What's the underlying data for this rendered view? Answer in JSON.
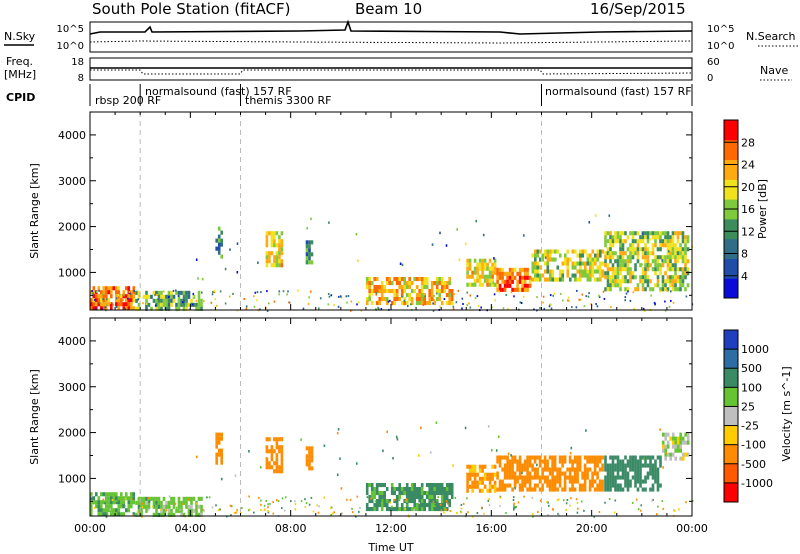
{
  "header": {
    "station": "South Pole Station (fitACF)",
    "beam": "Beam 10",
    "date": "16/Sep/2015"
  },
  "noise_panel": {
    "left_label": "N.Sky",
    "right_label": "N.Search",
    "left_ticks": [
      "10^5",
      "10^0"
    ],
    "right_ticks": [
      "10^5",
      "10^0"
    ]
  },
  "freq_panel": {
    "left_label_line1": "Freq.",
    "left_label_line2": "[MHz]",
    "right_label": "Nave",
    "left_ticks": [
      "18",
      "8"
    ],
    "right_ticks": [
      "60",
      "0"
    ]
  },
  "cpid": {
    "label": "CPID",
    "segments": [
      {
        "start_hour": 0.0,
        "text": "rbsp 200 RF"
      },
      {
        "start_hour": 2.0,
        "text": "normalsound (fast) 157 RF"
      },
      {
        "start_hour": 6.0,
        "text": "themis 3300 RF"
      },
      {
        "start_hour": 18.0,
        "text": "normalsound (fast) 157 RF"
      }
    ]
  },
  "x_axis": {
    "label": "Time UT",
    "range_hours": [
      0,
      24
    ],
    "ticks": [
      {
        "hour": 0,
        "label": "00:00"
      },
      {
        "hour": 4,
        "label": "04:00"
      },
      {
        "hour": 8,
        "label": "08:00"
      },
      {
        "hour": 12,
        "label": "12:00"
      },
      {
        "hour": 16,
        "label": "16:00"
      },
      {
        "hour": 20,
        "label": "20:00"
      },
      {
        "hour": 24,
        "label": "00:00"
      }
    ]
  },
  "chart_data": [
    {
      "type": "heatmap",
      "name": "power",
      "xlabel": "Time UT",
      "ylabel": "Slant Range [km]",
      "xlim": [
        0,
        24
      ],
      "ylim": [
        180,
        4500
      ],
      "y_ticks": [
        {
          "value": 1000,
          "label": "1000"
        },
        {
          "value": 2000,
          "label": "2000"
        },
        {
          "value": 3000,
          "label": "3000"
        },
        {
          "value": 4000,
          "label": "4000"
        }
      ],
      "colorbar": {
        "label": "Power [dB]",
        "range": [
          0,
          32
        ],
        "ticks": [
          {
            "value": 4,
            "label": "4"
          },
          {
            "value": 8,
            "label": "8"
          },
          {
            "value": 12,
            "label": "12"
          },
          {
            "value": 16,
            "label": "16"
          },
          {
            "value": 20,
            "label": "20"
          },
          {
            "value": 24,
            "label": "24"
          },
          {
            "value": 28,
            "label": "28"
          }
        ],
        "colors": [
          "#0b0bd9",
          "#1f4ea8",
          "#2f6e86",
          "#3c8c5c",
          "#7fc93c",
          "#f0e21c",
          "#ffaa11",
          "#ff6a00",
          "#ff0000"
        ]
      },
      "regions": [
        {
          "t0": 0.0,
          "t1": 1.8,
          "r0": 200,
          "r1": 700,
          "value": 26
        },
        {
          "t0": 1.8,
          "t1": 4.5,
          "r0": 200,
          "r1": 600,
          "value": 14
        },
        {
          "t0": 5.0,
          "t1": 5.25,
          "r0": 1300,
          "r1": 2000,
          "value": 10
        },
        {
          "t0": 7.0,
          "t1": 7.7,
          "r0": 1100,
          "r1": 1900,
          "value": 20
        },
        {
          "t0": 8.6,
          "t1": 8.9,
          "r0": 1200,
          "r1": 1700,
          "value": 12
        },
        {
          "t0": 11.0,
          "t1": 14.5,
          "r0": 250,
          "r1": 900,
          "value": 22
        },
        {
          "t0": 15.0,
          "t1": 16.2,
          "r0": 700,
          "r1": 1300,
          "value": 20
        },
        {
          "t0": 16.2,
          "t1": 17.6,
          "r0": 600,
          "r1": 1100,
          "value": 26
        },
        {
          "t0": 17.6,
          "t1": 20.5,
          "r0": 800,
          "r1": 1500,
          "value": 18
        },
        {
          "t0": 20.5,
          "t1": 23.9,
          "r0": 600,
          "r1": 1900,
          "value": 17
        }
      ]
    },
    {
      "type": "heatmap",
      "name": "velocity",
      "xlabel": "Time UT",
      "ylabel": "Slant Range [km]",
      "xlim": [
        0,
        24
      ],
      "ylim": [
        180,
        4500
      ],
      "y_ticks": [
        {
          "value": 1000,
          "label": "1000"
        },
        {
          "value": 2000,
          "label": "2000"
        },
        {
          "value": 3000,
          "label": "3000"
        },
        {
          "value": 4000,
          "label": "4000"
        }
      ],
      "colorbar": {
        "label": "Velocity [m s^-1]",
        "labels_top_to_bottom": [
          "1000",
          "500",
          "100",
          "25",
          "-25",
          "-100",
          "-500",
          "-1000"
        ],
        "colors_top_to_bottom": [
          "#1f3fbf",
          "#2e6da3",
          "#3a8a66",
          "#66c433",
          "#bfbfbf",
          "#ffcc00",
          "#ff8c00",
          "#ff5a00",
          "#ff0000"
        ]
      },
      "regions": [
        {
          "t0": 0.0,
          "t1": 1.8,
          "r0": 200,
          "r1": 700,
          "value": 80
        },
        {
          "t0": 1.8,
          "t1": 4.5,
          "r0": 200,
          "r1": 600,
          "value": 60
        },
        {
          "t0": 5.0,
          "t1": 5.25,
          "r0": 1300,
          "r1": 2000,
          "value": -200
        },
        {
          "t0": 7.0,
          "t1": 7.7,
          "r0": 1100,
          "r1": 1900,
          "value": -300
        },
        {
          "t0": 8.6,
          "t1": 8.9,
          "r0": 1200,
          "r1": 1700,
          "value": -250
        },
        {
          "t0": 11.0,
          "t1": 14.5,
          "r0": 250,
          "r1": 900,
          "value": 150
        },
        {
          "t0": 15.0,
          "t1": 16.2,
          "r0": 700,
          "r1": 1300,
          "value": -150
        },
        {
          "t0": 16.2,
          "t1": 20.5,
          "r0": 700,
          "r1": 1500,
          "value": -250
        },
        {
          "t0": 20.5,
          "t1": 22.8,
          "r0": 700,
          "r1": 1500,
          "value": 300
        },
        {
          "t0": 22.8,
          "t1": 23.9,
          "r0": 1400,
          "r1": 2000,
          "value": 10
        }
      ]
    }
  ]
}
